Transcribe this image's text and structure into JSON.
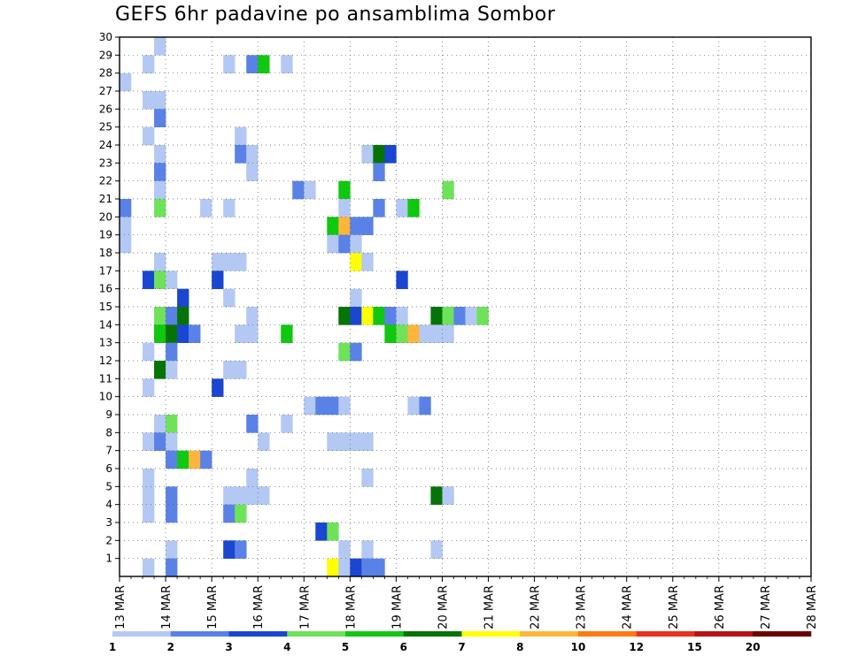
{
  "chart_data": {
    "type": "heatmap",
    "title": "GEFS 6hr padavine po ansamblima Sombor",
    "xlabel": "",
    "ylabel": "",
    "x_ticks": [
      "13 MAR",
      "14 MAR",
      "15 MAR",
      "16 MAR",
      "17 MAR",
      "18 MAR",
      "19 MAR",
      "20 MAR",
      "21 MAR",
      "22 MAR",
      "23 MAR",
      "24 MAR",
      "25 MAR",
      "26 MAR",
      "27 MAR",
      "28 MAR"
    ],
    "y_ticks": [
      1,
      2,
      3,
      4,
      5,
      6,
      7,
      8,
      9,
      10,
      11,
      12,
      13,
      14,
      15,
      16,
      17,
      18,
      19,
      20,
      21,
      22,
      23,
      24,
      25,
      26,
      27,
      28,
      29,
      30
    ],
    "x_step": "6hr",
    "ylim": [
      0,
      30
    ],
    "grid": true,
    "legend": "bottom",
    "colorbar": {
      "labels": [
        "1",
        "2",
        "3",
        "4",
        "5",
        "6",
        "7",
        "8",
        "10",
        "12",
        "15",
        "20"
      ],
      "colors": [
        "#b4c8f4",
        "#5a82e6",
        "#1a46d2",
        "#6ee35a",
        "#0fc80f",
        "#067306",
        "#ffff00",
        "#ffb43c",
        "#ff7a14",
        "#e6321e",
        "#b41414",
        "#6e0000"
      ]
    },
    "cells_note_units": "t = 6-hour step index from 13 MAR 00Z, m = member, c = colour class index",
    "cells": [
      [
        3,
        30,
        0
      ],
      [
        2,
        29,
        0
      ],
      [
        11,
        29,
        1
      ],
      [
        12,
        29,
        4
      ],
      [
        9,
        29,
        0
      ],
      [
        14,
        29,
        0
      ],
      [
        0,
        28,
        0
      ],
      [
        2,
        27,
        0
      ],
      [
        3,
        27,
        0
      ],
      [
        3,
        26,
        1
      ],
      [
        2,
        25,
        0
      ],
      [
        10,
        25,
        0
      ],
      [
        3,
        24,
        0
      ],
      [
        10,
        24,
        1
      ],
      [
        11,
        24,
        0
      ],
      [
        21,
        24,
        0
      ],
      [
        22,
        24,
        5
      ],
      [
        23,
        24,
        2
      ],
      [
        3,
        23,
        1
      ],
      [
        11,
        23,
        0
      ],
      [
        22,
        23,
        1
      ],
      [
        3,
        22,
        0
      ],
      [
        15,
        22,
        1
      ],
      [
        16,
        22,
        0
      ],
      [
        19,
        22,
        4
      ],
      [
        28,
        22,
        3
      ],
      [
        0,
        21,
        1
      ],
      [
        3,
        21,
        3
      ],
      [
        7,
        21,
        0
      ],
      [
        9,
        21,
        0
      ],
      [
        19,
        21,
        0
      ],
      [
        22,
        21,
        1
      ],
      [
        24,
        21,
        0
      ],
      [
        25,
        21,
        4
      ],
      [
        0,
        20,
        0
      ],
      [
        18,
        20,
        4
      ],
      [
        19,
        20,
        7
      ],
      [
        20,
        20,
        1
      ],
      [
        21,
        20,
        1
      ],
      [
        0,
        19,
        0
      ],
      [
        18,
        19,
        0
      ],
      [
        19,
        19,
        1
      ],
      [
        20,
        19,
        0
      ],
      [
        9,
        18,
        0
      ],
      [
        10,
        18,
        0
      ],
      [
        20,
        18,
        6
      ],
      [
        21,
        18,
        0
      ],
      [
        3,
        18,
        0
      ],
      [
        8,
        18,
        0
      ],
      [
        8,
        17,
        2
      ],
      [
        24,
        17,
        2
      ],
      [
        2,
        17,
        2
      ],
      [
        3,
        17,
        3
      ],
      [
        4,
        17,
        0
      ],
      [
        9,
        16,
        0
      ],
      [
        5,
        16,
        2
      ],
      [
        20,
        16,
        0
      ],
      [
        3,
        15,
        3
      ],
      [
        4,
        15,
        1
      ],
      [
        5,
        15,
        5
      ],
      [
        11,
        15,
        0
      ],
      [
        19,
        15,
        5
      ],
      [
        20,
        15,
        2
      ],
      [
        21,
        15,
        6
      ],
      [
        22,
        15,
        4
      ],
      [
        23,
        15,
        1
      ],
      [
        24,
        15,
        0
      ],
      [
        27,
        15,
        5
      ],
      [
        28,
        15,
        3
      ],
      [
        29,
        15,
        1
      ],
      [
        30,
        15,
        0
      ],
      [
        31,
        15,
        3
      ],
      [
        3,
        14,
        4
      ],
      [
        4,
        14,
        5
      ],
      [
        5,
        14,
        2
      ],
      [
        6,
        14,
        1
      ],
      [
        10,
        14,
        0
      ],
      [
        11,
        14,
        0
      ],
      [
        14,
        14,
        4
      ],
      [
        23,
        14,
        4
      ],
      [
        24,
        14,
        3
      ],
      [
        25,
        14,
        7
      ],
      [
        26,
        14,
        0
      ],
      [
        27,
        14,
        0
      ],
      [
        28,
        14,
        0
      ],
      [
        2,
        13,
        0
      ],
      [
        4,
        13,
        1
      ],
      [
        19,
        13,
        3
      ],
      [
        20,
        13,
        1
      ],
      [
        3,
        12,
        5
      ],
      [
        4,
        12,
        0
      ],
      [
        9,
        12,
        0
      ],
      [
        10,
        12,
        0
      ],
      [
        2,
        11,
        0
      ],
      [
        8,
        11,
        2
      ],
      [
        16,
        10,
        0
      ],
      [
        17,
        10,
        1
      ],
      [
        18,
        10,
        1
      ],
      [
        19,
        10,
        0
      ],
      [
        25,
        10,
        0
      ],
      [
        26,
        10,
        1
      ],
      [
        3,
        9,
        0
      ],
      [
        4,
        9,
        3
      ],
      [
        11,
        9,
        1
      ],
      [
        14,
        9,
        0
      ],
      [
        2,
        8,
        0
      ],
      [
        3,
        8,
        1
      ],
      [
        4,
        8,
        0
      ],
      [
        12,
        8,
        0
      ],
      [
        18,
        8,
        0
      ],
      [
        19,
        8,
        0
      ],
      [
        20,
        8,
        0
      ],
      [
        21,
        8,
        0
      ],
      [
        4,
        7,
        1
      ],
      [
        5,
        7,
        4
      ],
      [
        6,
        7,
        7
      ],
      [
        7,
        7,
        1
      ],
      [
        2,
        6,
        0
      ],
      [
        11,
        6,
        0
      ],
      [
        21,
        6,
        0
      ],
      [
        2,
        5,
        0
      ],
      [
        4,
        5,
        1
      ],
      [
        9,
        5,
        0
      ],
      [
        10,
        5,
        0
      ],
      [
        11,
        5,
        0
      ],
      [
        12,
        5,
        0
      ],
      [
        27,
        5,
        5
      ],
      [
        28,
        5,
        0
      ],
      [
        2,
        4,
        0
      ],
      [
        4,
        4,
        1
      ],
      [
        9,
        4,
        1
      ],
      [
        10,
        4,
        3
      ],
      [
        17,
        3,
        2
      ],
      [
        18,
        3,
        3
      ],
      [
        4,
        2,
        0
      ],
      [
        9,
        2,
        2
      ],
      [
        10,
        2,
        1
      ],
      [
        19,
        2,
        0
      ],
      [
        21,
        2,
        0
      ],
      [
        27,
        2,
        0
      ],
      [
        2,
        1,
        0
      ],
      [
        4,
        1,
        1
      ],
      [
        18,
        1,
        6
      ],
      [
        19,
        1,
        0
      ],
      [
        20,
        1,
        2
      ],
      [
        21,
        1,
        1
      ],
      [
        22,
        1,
        1
      ]
    ]
  }
}
